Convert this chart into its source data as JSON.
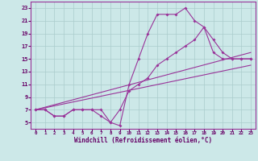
{
  "xlabel": "Windchill (Refroidissement éolien,°C)",
  "bg_color": "#cce8e8",
  "grid_color": "#aacccc",
  "line_color": "#993399",
  "xlim": [
    -0.5,
    23.5
  ],
  "ylim": [
    4,
    24
  ],
  "xticks": [
    0,
    1,
    2,
    3,
    4,
    5,
    6,
    7,
    8,
    9,
    10,
    11,
    12,
    13,
    14,
    15,
    16,
    17,
    18,
    19,
    20,
    21,
    22,
    23
  ],
  "yticks": [
    5,
    7,
    9,
    11,
    13,
    15,
    17,
    19,
    21,
    23
  ],
  "curve1_x": [
    0,
    1,
    2,
    3,
    4,
    5,
    6,
    7,
    8,
    9,
    10,
    11,
    12,
    13,
    14,
    15,
    16,
    17,
    18,
    19,
    20,
    21,
    22,
    23
  ],
  "curve1_y": [
    7,
    7,
    6,
    6,
    7,
    7,
    7,
    7,
    5,
    4.5,
    11,
    15,
    19,
    22,
    22,
    22,
    23,
    21,
    20,
    16,
    15,
    15,
    15,
    15
  ],
  "curve2_x": [
    0,
    1,
    2,
    3,
    4,
    5,
    6,
    7,
    8,
    9,
    10,
    11,
    12,
    13,
    14,
    15,
    16,
    17,
    18,
    19,
    20,
    21,
    22,
    23
  ],
  "curve2_y": [
    7,
    7,
    6,
    6,
    7,
    7,
    7,
    6,
    5,
    7,
    10,
    11,
    12,
    14,
    15,
    16,
    17,
    18,
    20,
    18,
    16,
    15,
    15,
    15
  ],
  "curve3_x": [
    0,
    23
  ],
  "curve3_y": [
    7,
    16
  ],
  "curve4_x": [
    0,
    23
  ],
  "curve4_y": [
    7,
    14
  ]
}
